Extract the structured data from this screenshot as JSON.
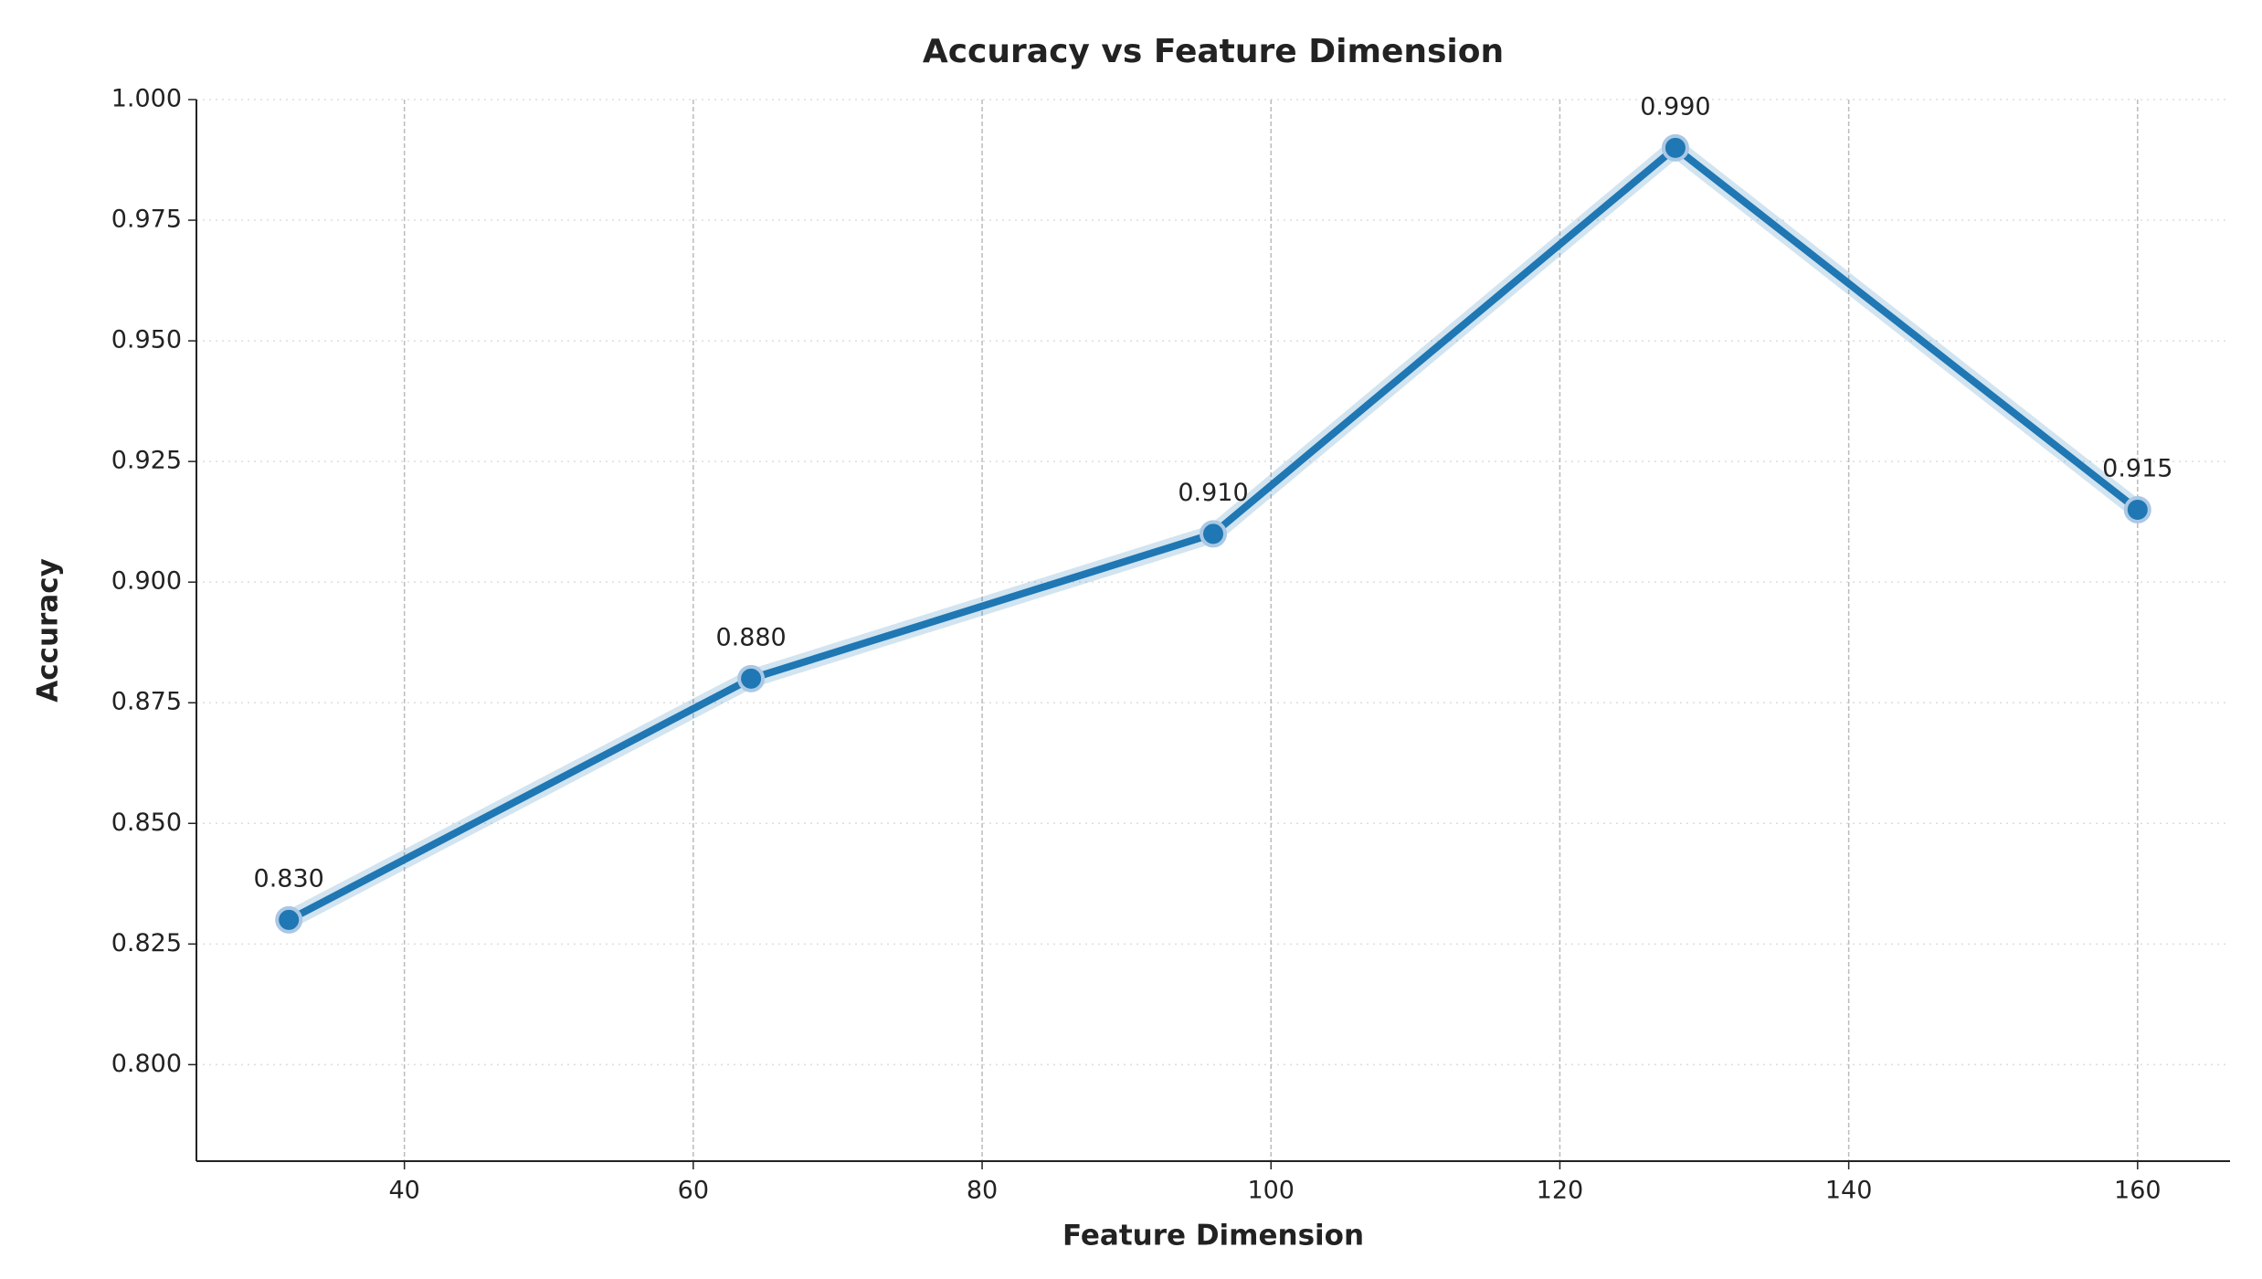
{
  "chart_data": {
    "type": "line",
    "title": "Accuracy vs Feature Dimension",
    "x_label": "Feature Dimension",
    "y_label": "Accuracy",
    "x": [
      32,
      64,
      96,
      128,
      160
    ],
    "series": [
      {
        "color": "#1f77b4",
        "values": [
          0.83,
          0.88,
          0.91,
          0.99,
          0.915
        ],
        "value_labels": [
          "0.830",
          "0.880",
          "0.910",
          "0.990",
          "0.915"
        ]
      }
    ],
    "xlim": [
      25.6,
      166.4
    ],
    "xticks": [
      40,
      60,
      80,
      100,
      120,
      140,
      160
    ],
    "ylim": [
      0.78,
      1.0
    ],
    "yticks": [
      {
        "value": 0.8,
        "label": "0.800"
      },
      {
        "value": 0.825,
        "label": "0.825"
      },
      {
        "value": 0.85,
        "label": "0.850"
      },
      {
        "value": 0.875,
        "label": "0.875"
      },
      {
        "value": 0.9,
        "label": "0.900"
      },
      {
        "value": 0.925,
        "label": "0.925"
      },
      {
        "value": 0.95,
        "label": "0.950"
      },
      {
        "value": 0.975,
        "label": "0.975"
      },
      {
        "value": 1.0,
        "label": "1.000"
      }
    ],
    "grid": true
  }
}
